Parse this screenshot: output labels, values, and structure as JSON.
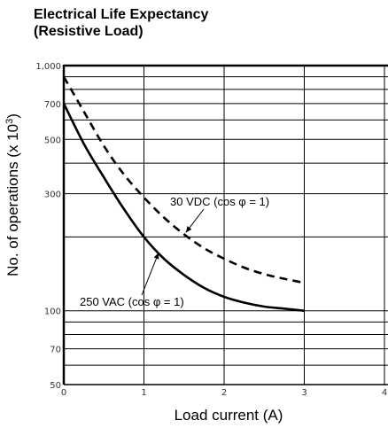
{
  "chart_data": {
    "type": "line",
    "title_line1": "Electrical Life Expectancy",
    "title_line2": "(Resistive Load)",
    "xlabel": "Load current (A)",
    "ylabel_main": "No. of operations (x 10",
    "ylabel_sup": "3",
    "ylabel_close": ")",
    "xlim": [
      0,
      4
    ],
    "ylim": [
      50,
      1000
    ],
    "yscale": "log",
    "grid": true,
    "x_ticks": [
      {
        "value": 0,
        "label": "0"
      },
      {
        "value": 1,
        "label": "1"
      },
      {
        "value": 2,
        "label": "2"
      },
      {
        "value": 3,
        "label": "3"
      },
      {
        "value": 4,
        "label": "4"
      }
    ],
    "y_ticks": [
      {
        "value": 1000,
        "label": "1,000"
      },
      {
        "value": 700,
        "label": "700"
      },
      {
        "value": 500,
        "label": "500"
      },
      {
        "value": 300,
        "label": "300"
      },
      {
        "value": 100,
        "label": "100"
      },
      {
        "value": 70,
        "label": "70"
      },
      {
        "value": 50,
        "label": "50"
      }
    ],
    "y_gridlines": [
      1000,
      900,
      800,
      700,
      600,
      500,
      400,
      300,
      200,
      100,
      90,
      80,
      70,
      60,
      50
    ],
    "series": [
      {
        "name": "250 VAC (cos φ = 1)",
        "style": "solid",
        "x": [
          0,
          0.25,
          0.5,
          0.75,
          1.0,
          1.25,
          1.5,
          1.75,
          2.0,
          2.25,
          2.5,
          2.75,
          3.0
        ],
        "y": [
          700,
          480,
          350,
          260,
          200,
          163,
          140,
          124,
          114,
          108,
          104,
          102,
          100
        ]
      },
      {
        "name": "30 VDC (cos φ = 1)",
        "style": "dashed",
        "x": [
          0,
          0.25,
          0.5,
          0.75,
          1.0,
          1.25,
          1.5,
          1.75,
          2.0,
          2.25,
          2.5,
          2.75,
          3.0
        ],
        "y": [
          900,
          650,
          470,
          360,
          290,
          240,
          205,
          180,
          163,
          150,
          141,
          135,
          130
        ]
      }
    ],
    "annotations": [
      {
        "text": "30 VDC (cos φ = 1)",
        "series": 1,
        "anchor_x": 1.5
      },
      {
        "text": "250 VAC (cos φ = 1)",
        "series": 0,
        "anchor_x": 1.15
      }
    ]
  }
}
